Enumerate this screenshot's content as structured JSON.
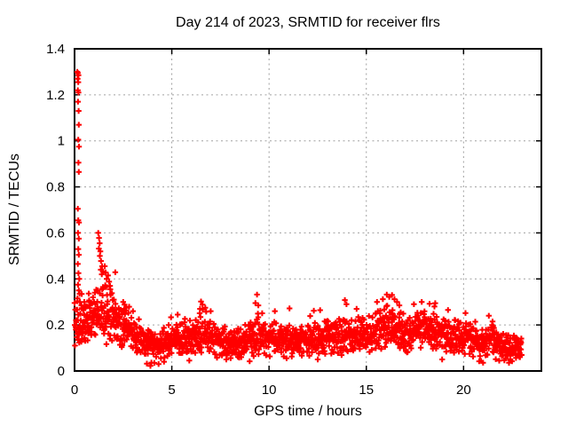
{
  "window": {
    "background": "#ffffff"
  },
  "chart_data": {
    "type": "scatter",
    "title": "Day 214 of 2023, SRMTID for receiver flrs",
    "xlabel": "GPS time / hours",
    "ylabel": "SRMTID / TECUs",
    "xlim": [
      0,
      24
    ],
    "ylim": [
      0,
      1.4
    ],
    "xticks": [
      0,
      5,
      10,
      15,
      20
    ],
    "xticklabels": [
      "0",
      "5",
      "10",
      "15",
      "20"
    ],
    "yticks": [
      0,
      0.2,
      0.4,
      0.6,
      0.8,
      1.0,
      1.2,
      1.4
    ],
    "yticklabels": [
      "0",
      "0.2",
      "0.4",
      "0.6",
      "0.8",
      "1",
      "1.2",
      "1.4"
    ],
    "grid": true,
    "grid_color": "#a0a0a0",
    "axis_color": "#000000",
    "marker": "plus",
    "marker_color": "#ff0000",
    "legend": "none",
    "data_start_hour": 0.0,
    "data_end_hour": 23.0,
    "samples_per_hour": 78,
    "seed": 20230214,
    "baseline_mean": [
      [
        0,
        0.19
      ],
      [
        0.5,
        0.2
      ],
      [
        1.0,
        0.22
      ],
      [
        1.4,
        0.26
      ],
      [
        1.8,
        0.24
      ],
      [
        2.3,
        0.2
      ],
      [
        2.8,
        0.19
      ],
      [
        3.3,
        0.13
      ],
      [
        3.8,
        0.11
      ],
      [
        4.3,
        0.11
      ],
      [
        5.0,
        0.13
      ],
      [
        5.8,
        0.14
      ],
      [
        6.6,
        0.17
      ],
      [
        7.3,
        0.13
      ],
      [
        8.3,
        0.12
      ],
      [
        9.4,
        0.15
      ],
      [
        10.0,
        0.14
      ],
      [
        11.0,
        0.135
      ],
      [
        12.0,
        0.13
      ],
      [
        13.0,
        0.145
      ],
      [
        14.0,
        0.155
      ],
      [
        15.0,
        0.16
      ],
      [
        15.8,
        0.19
      ],
      [
        16.4,
        0.2
      ],
      [
        17.0,
        0.16
      ],
      [
        17.9,
        0.175
      ],
      [
        18.6,
        0.165
      ],
      [
        19.5,
        0.15
      ],
      [
        20.2,
        0.14
      ],
      [
        20.9,
        0.115
      ],
      [
        21.5,
        0.13
      ],
      [
        22.2,
        0.1
      ],
      [
        23.0,
        0.1
      ]
    ],
    "baseline_spread": [
      [
        0,
        0.075
      ],
      [
        1,
        0.085
      ],
      [
        1.6,
        0.095
      ],
      [
        2.2,
        0.08
      ],
      [
        3,
        0.07
      ],
      [
        3.6,
        0.05
      ],
      [
        4.3,
        0.045
      ],
      [
        5,
        0.05
      ],
      [
        6.6,
        0.06
      ],
      [
        7.5,
        0.05
      ],
      [
        8.5,
        0.048
      ],
      [
        9.5,
        0.055
      ],
      [
        11,
        0.05
      ],
      [
        12.5,
        0.05
      ],
      [
        13.5,
        0.055
      ],
      [
        15,
        0.06
      ],
      [
        16,
        0.07
      ],
      [
        17,
        0.06
      ],
      [
        18,
        0.062
      ],
      [
        19.5,
        0.055
      ],
      [
        20.8,
        0.05
      ],
      [
        21.8,
        0.047
      ],
      [
        22.4,
        0.042
      ],
      [
        23,
        0.04
      ]
    ],
    "outlier_points": [
      [
        0.14,
        1.3
      ],
      [
        0.17,
        1.295
      ],
      [
        0.2,
        1.285
      ],
      [
        0.16,
        1.27
      ],
      [
        0.19,
        1.255
      ],
      [
        0.17,
        1.22
      ],
      [
        0.2,
        1.21
      ],
      [
        0.18,
        1.17
      ],
      [
        0.21,
        1.13
      ],
      [
        0.22,
        1.07
      ],
      [
        0.19,
        1.005
      ],
      [
        0.23,
        0.975
      ],
      [
        0.2,
        0.905
      ],
      [
        0.22,
        0.865
      ],
      [
        0.17,
        0.705
      ],
      [
        0.19,
        0.655
      ],
      [
        0.23,
        0.645
      ],
      [
        0.18,
        0.6
      ],
      [
        0.22,
        0.575
      ],
      [
        0.19,
        0.53
      ],
      [
        0.22,
        0.505
      ],
      [
        0.17,
        0.465
      ],
      [
        0.2,
        0.425
      ],
      [
        0.24,
        0.4
      ],
      [
        0.18,
        0.375
      ],
      [
        0.22,
        0.35
      ],
      [
        0.26,
        0.335
      ],
      [
        0.15,
        0.315
      ],
      [
        0.28,
        0.3
      ],
      [
        0.35,
        0.285
      ],
      [
        0.42,
        0.27
      ],
      [
        0.5,
        0.3
      ],
      [
        0.55,
        0.28
      ],
      [
        0.75,
        0.3
      ],
      [
        0.8,
        0.285
      ],
      [
        0.95,
        0.32
      ],
      [
        1.0,
        0.3
      ],
      [
        1.05,
        0.34
      ],
      [
        1.22,
        0.6
      ],
      [
        1.26,
        0.578
      ],
      [
        1.29,
        0.555
      ],
      [
        1.25,
        0.532
      ],
      [
        1.33,
        0.52
      ],
      [
        1.3,
        0.5
      ],
      [
        1.36,
        0.478
      ],
      [
        1.42,
        0.455
      ],
      [
        1.48,
        0.432
      ],
      [
        1.55,
        0.455
      ],
      [
        1.6,
        0.428
      ],
      [
        1.65,
        0.4
      ],
      [
        1.72,
        0.415
      ],
      [
        1.78,
        0.388
      ],
      [
        1.46,
        0.36
      ],
      [
        1.58,
        0.372
      ],
      [
        1.84,
        0.355
      ],
      [
        1.92,
        0.338
      ],
      [
        1.35,
        0.44
      ],
      [
        1.4,
        0.42
      ],
      [
        2.5,
        0.3
      ],
      [
        2.57,
        0.288
      ],
      [
        2.65,
        0.275
      ],
      [
        3.0,
        0.26
      ],
      [
        5.3,
        0.245
      ],
      [
        6.45,
        0.27
      ],
      [
        6.5,
        0.302
      ],
      [
        6.58,
        0.288
      ],
      [
        6.72,
        0.275
      ],
      [
        7.0,
        0.26
      ],
      [
        9.3,
        0.295
      ],
      [
        9.38,
        0.332
      ],
      [
        9.45,
        0.285
      ],
      [
        10.3,
        0.26
      ],
      [
        11.05,
        0.272
      ],
      [
        12.3,
        0.262
      ],
      [
        13.9,
        0.308
      ],
      [
        13.98,
        0.29
      ],
      [
        14.5,
        0.27
      ],
      [
        15.55,
        0.3
      ],
      [
        15.85,
        0.312
      ],
      [
        16.05,
        0.332
      ],
      [
        16.18,
        0.322
      ],
      [
        16.32,
        0.33
      ],
      [
        16.45,
        0.312
      ],
      [
        16.58,
        0.3
      ],
      [
        16.7,
        0.285
      ],
      [
        17.45,
        0.29
      ],
      [
        17.85,
        0.3
      ],
      [
        18.25,
        0.292
      ],
      [
        18.5,
        0.28
      ],
      [
        19.2,
        0.265
      ],
      [
        20.1,
        0.252
      ],
      [
        21.3,
        0.24
      ],
      [
        3.72,
        0.032
      ],
      [
        3.9,
        0.022
      ],
      [
        4.1,
        0.035
      ],
      [
        4.32,
        0.03
      ],
      [
        4.6,
        0.04
      ],
      [
        5.9,
        0.045
      ],
      [
        7.8,
        0.05
      ],
      [
        9.0,
        0.042
      ],
      [
        10.9,
        0.055
      ],
      [
        12.5,
        0.05
      ],
      [
        18.9,
        0.05
      ],
      [
        20.8,
        0.042
      ],
      [
        21.0,
        0.036
      ],
      [
        22.4,
        0.05
      ],
      [
        22.9,
        0.06
      ]
    ]
  }
}
